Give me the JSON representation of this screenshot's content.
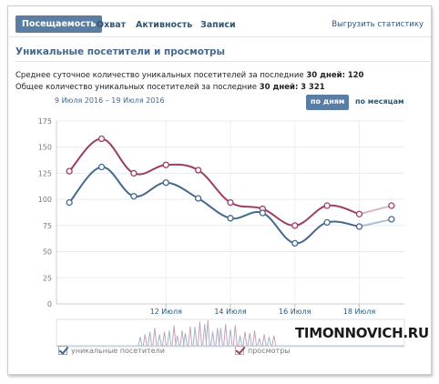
{
  "tabs": [
    {
      "label": "Посещаемость",
      "active": true
    },
    {
      "label": "Охват",
      "active": false
    },
    {
      "label": "Активность",
      "active": false
    },
    {
      "label": "Записи",
      "active": false
    }
  ],
  "export_label": "Выгрузить статистику",
  "section_title": "Уникальные посетители и просмотры",
  "stats": {
    "daily_prefix": "Среднее суточное количество уникальных посетителей за последние",
    "daily_period": "30 дней:",
    "daily_value": "120",
    "total_prefix": "Общее количество уникальных посетителей за последние",
    "total_period": "30 дней:",
    "total_value": "3 321"
  },
  "date_range": "9 Июля 2016 – 19 Июля 2016",
  "period_buttons": {
    "by_day": "по дням",
    "by_month": "по месяцам"
  },
  "legend": {
    "visitors": "уникальные посетители",
    "views": "просмотры"
  },
  "watermark": "TIMONNOVICH.RU",
  "colors": {
    "visitors": "#45688e",
    "views": "#9d3d67",
    "visitors_faded": "#a9c0d6",
    "views_faded": "#d6b8ca"
  },
  "chart_data": {
    "type": "line",
    "x": [
      9,
      10,
      11,
      12,
      13,
      14,
      15,
      16,
      17,
      18,
      19
    ],
    "x_tick_labels": [
      {
        "x": 12,
        "label": "12 Июля"
      },
      {
        "x": 14,
        "label": "14 Июля"
      },
      {
        "x": 16,
        "label": "16 Июля"
      },
      {
        "x": 18,
        "label": "18 Июля"
      }
    ],
    "xlim": [
      8.6,
      19.4
    ],
    "ylim": [
      0,
      175
    ],
    "y_ticks": [
      0,
      25,
      50,
      75,
      100,
      125,
      150,
      175
    ],
    "grid": true,
    "series": [
      {
        "name": "уникальные посетители",
        "values": [
          97,
          131,
          103,
          116,
          101,
          82,
          87,
          58,
          78,
          74,
          81
        ],
        "dashed_from": 9
      },
      {
        "name": "просмотры",
        "values": [
          127,
          158,
          125,
          133,
          128,
          97,
          91,
          75,
          94,
          86,
          94
        ],
        "dashed_from": 9
      }
    ],
    "navigator": {
      "visitors_spikes": [
        {
          "x": 11.2,
          "v": 0.35
        },
        {
          "x": 11.5,
          "v": 0.55
        },
        {
          "x": 11.8,
          "v": 0.45
        },
        {
          "x": 12.1,
          "v": 0.6
        },
        {
          "x": 12.35,
          "v": 0.4
        },
        {
          "x": 12.6,
          "v": 0.5
        },
        {
          "x": 12.9,
          "v": 0.75
        },
        {
          "x": 13.2,
          "v": 0.85
        },
        {
          "x": 13.45,
          "v": 0.55
        },
        {
          "x": 13.7,
          "v": 0.7
        },
        {
          "x": 14.0,
          "v": 0.65
        },
        {
          "x": 14.3,
          "v": 0.4
        },
        {
          "x": 14.6,
          "v": 0.5
        },
        {
          "x": 14.9,
          "v": 0.3
        },
        {
          "x": 15.2,
          "v": 0.35
        }
      ],
      "views_spikes": [
        {
          "x": 11.35,
          "v": 0.45
        },
        {
          "x": 11.65,
          "v": 0.7
        },
        {
          "x": 11.95,
          "v": 0.55
        },
        {
          "x": 12.25,
          "v": 0.8
        },
        {
          "x": 12.5,
          "v": 0.6
        },
        {
          "x": 12.75,
          "v": 0.75
        },
        {
          "x": 13.05,
          "v": 0.95
        },
        {
          "x": 13.3,
          "v": 1.0
        },
        {
          "x": 13.6,
          "v": 0.7
        },
        {
          "x": 13.85,
          "v": 0.85
        },
        {
          "x": 14.15,
          "v": 0.8
        },
        {
          "x": 14.45,
          "v": 0.55
        },
        {
          "x": 14.75,
          "v": 0.6
        },
        {
          "x": 15.05,
          "v": 0.45
        },
        {
          "x": 15.35,
          "v": 0.4
        }
      ]
    }
  }
}
